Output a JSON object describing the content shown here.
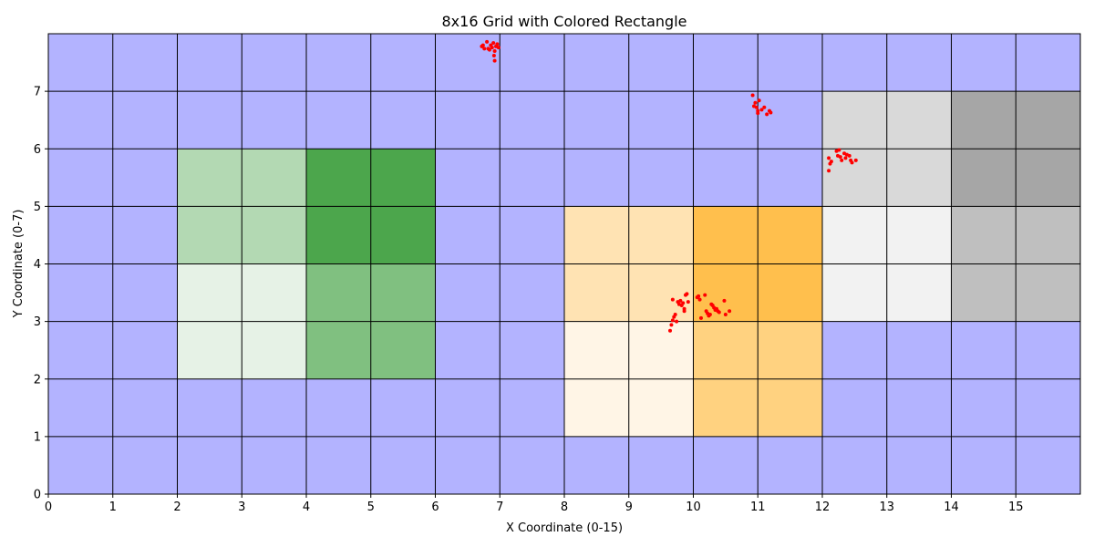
{
  "chart_data": {
    "type": "heatmap",
    "title": "8x16 Grid with Colored Rectangle",
    "xlabel": "X Coordinate (0-15)",
    "ylabel": "Y Coordinate (0-7)",
    "xlim": [
      0,
      16
    ],
    "ylim": [
      0,
      8
    ],
    "x_ticks": [
      0,
      1,
      2,
      3,
      4,
      5,
      6,
      7,
      8,
      9,
      10,
      11,
      12,
      13,
      14,
      15
    ],
    "y_ticks": [
      0,
      1,
      2,
      3,
      4,
      5,
      6,
      7
    ],
    "grid": true,
    "background_color": "#b3b3ff",
    "grid_line_color": "#000000",
    "colored_cells": [
      {
        "x": 2,
        "y": 4,
        "w": 2,
        "h": 2,
        "color": "#b3d9b3"
      },
      {
        "x": 4,
        "y": 4,
        "w": 2,
        "h": 2,
        "color": "#4ca64c"
      },
      {
        "x": 2,
        "y": 2,
        "w": 2,
        "h": 2,
        "color": "#e6f2e6"
      },
      {
        "x": 4,
        "y": 2,
        "w": 2,
        "h": 2,
        "color": "#80c080"
      },
      {
        "x": 8,
        "y": 3,
        "w": 2,
        "h": 2,
        "color": "#ffe3b3"
      },
      {
        "x": 10,
        "y": 3,
        "w": 2,
        "h": 2,
        "color": "#ffbf4d"
      },
      {
        "x": 8,
        "y": 1,
        "w": 2,
        "h": 2,
        "color": "#fff5e6"
      },
      {
        "x": 10,
        "y": 1,
        "w": 2,
        "h": 2,
        "color": "#ffd280"
      },
      {
        "x": 12,
        "y": 5,
        "w": 2,
        "h": 2,
        "color": "#d9d9d9"
      },
      {
        "x": 14,
        "y": 5,
        "w": 2,
        "h": 2,
        "color": "#a6a6a6"
      },
      {
        "x": 12,
        "y": 3,
        "w": 2,
        "h": 2,
        "color": "#f2f2f2"
      },
      {
        "x": 14,
        "y": 3,
        "w": 2,
        "h": 2,
        "color": "#bfbfbf"
      }
    ],
    "scatter_series": [
      {
        "color": "#ff0000",
        "points": [
          [
            6.72,
            7.78
          ],
          [
            6.76,
            7.74
          ],
          [
            6.8,
            7.86
          ],
          [
            6.84,
            7.72
          ],
          [
            6.86,
            7.8
          ],
          [
            6.88,
            7.76
          ],
          [
            6.9,
            7.84
          ],
          [
            6.92,
            7.7
          ],
          [
            6.94,
            7.78
          ],
          [
            6.96,
            7.82
          ],
          [
            6.91,
            7.62
          ],
          [
            6.92,
            7.53
          ],
          [
            6.82,
            7.74
          ],
          [
            6.74,
            7.8
          ],
          [
            6.98,
            7.76
          ],
          [
            10.92,
            6.93
          ],
          [
            10.96,
            6.8
          ],
          [
            10.98,
            6.72
          ],
          [
            11.0,
            6.66
          ],
          [
            10.94,
            6.74
          ],
          [
            11.02,
            6.84
          ],
          [
            11.06,
            6.68
          ],
          [
            11.1,
            6.72
          ],
          [
            11.14,
            6.6
          ],
          [
            11.18,
            6.66
          ],
          [
            11.2,
            6.63
          ],
          [
            11.0,
            6.62
          ],
          [
            12.1,
            5.62
          ],
          [
            12.12,
            5.74
          ],
          [
            12.14,
            5.78
          ],
          [
            12.1,
            5.84
          ],
          [
            12.22,
            5.96
          ],
          [
            12.26,
            5.98
          ],
          [
            12.24,
            5.88
          ],
          [
            12.28,
            5.86
          ],
          [
            12.3,
            5.8
          ],
          [
            12.34,
            5.92
          ],
          [
            12.38,
            5.9
          ],
          [
            12.42,
            5.88
          ],
          [
            12.44,
            5.8
          ],
          [
            12.46,
            5.76
          ],
          [
            12.52,
            5.8
          ],
          [
            12.36,
            5.84
          ],
          [
            9.64,
            2.84
          ],
          [
            9.66,
            2.94
          ],
          [
            9.68,
            3.02
          ],
          [
            9.7,
            3.08
          ],
          [
            9.72,
            3.12
          ],
          [
            9.74,
            3.0
          ],
          [
            9.76,
            3.34
          ],
          [
            9.78,
            3.3
          ],
          [
            9.8,
            3.36
          ],
          [
            9.82,
            3.28
          ],
          [
            9.84,
            3.32
          ],
          [
            9.86,
            3.22
          ],
          [
            9.88,
            3.46
          ],
          [
            9.9,
            3.48
          ],
          [
            9.92,
            3.34
          ],
          [
            9.68,
            3.38
          ],
          [
            9.86,
            3.18
          ],
          [
            10.06,
            3.42
          ],
          [
            10.08,
            3.44
          ],
          [
            10.1,
            3.38
          ],
          [
            10.12,
            3.06
          ],
          [
            10.18,
            3.46
          ],
          [
            10.2,
            3.18
          ],
          [
            10.22,
            3.14
          ],
          [
            10.24,
            3.1
          ],
          [
            10.26,
            3.12
          ],
          [
            10.28,
            3.3
          ],
          [
            10.3,
            3.28
          ],
          [
            10.32,
            3.24
          ],
          [
            10.34,
            3.2
          ],
          [
            10.36,
            3.22
          ],
          [
            10.38,
            3.18
          ],
          [
            10.4,
            3.16
          ],
          [
            10.48,
            3.36
          ],
          [
            10.5,
            3.12
          ],
          [
            10.56,
            3.18
          ]
        ]
      }
    ]
  }
}
